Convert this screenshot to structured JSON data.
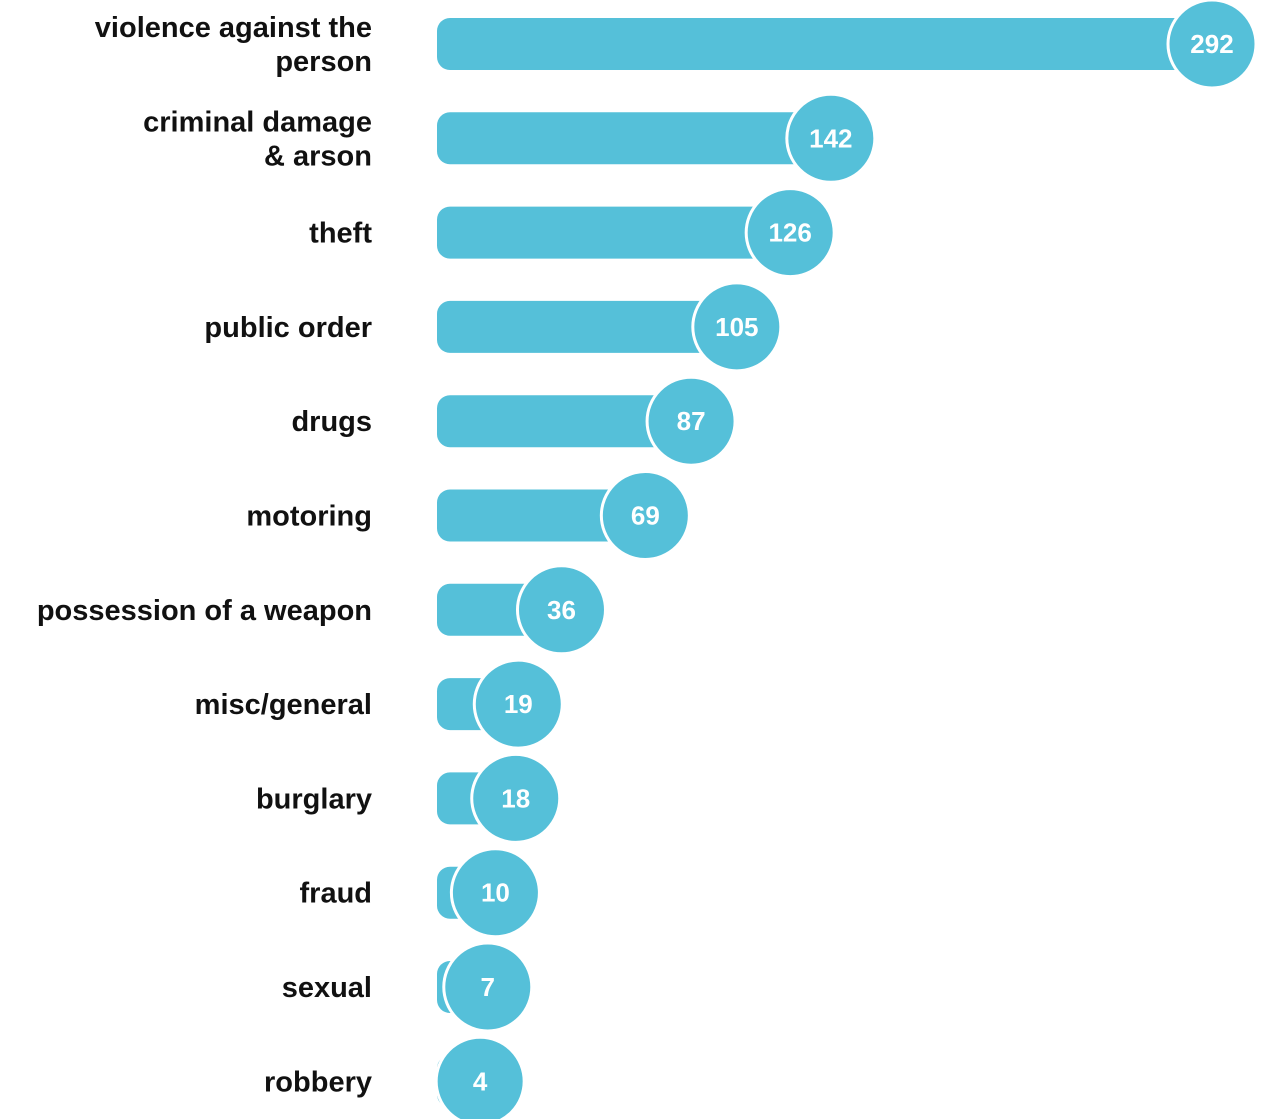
{
  "chart_data": {
    "type": "bar",
    "orientation": "horizontal",
    "categories": [
      [
        "violence against the",
        "person"
      ],
      [
        "criminal damage",
        "& arson"
      ],
      [
        "theft"
      ],
      [
        "public order"
      ],
      [
        "drugs"
      ],
      [
        "motoring"
      ],
      [
        "possession of a weapon"
      ],
      [
        "misc/general"
      ],
      [
        "burglary"
      ],
      [
        "fraud"
      ],
      [
        "sexual"
      ],
      [
        "robbery"
      ]
    ],
    "values": [
      292,
      142,
      126,
      105,
      87,
      69,
      36,
      19,
      18,
      10,
      7,
      4
    ],
    "data_labels": [
      "292",
      "142",
      "126",
      "105",
      "87",
      "69",
      "36",
      "19",
      "18",
      "10",
      "7",
      "4"
    ],
    "title": "",
    "xlabel": "",
    "ylabel": "",
    "xlim": [
      0,
      292
    ],
    "grid": false,
    "legend": "none"
  },
  "colors": {
    "bar": "#55c0d9",
    "bubble_outline": "#ffffff",
    "label_text": "#111111",
    "value_text": "#ffffff",
    "background": "#ffffff"
  }
}
